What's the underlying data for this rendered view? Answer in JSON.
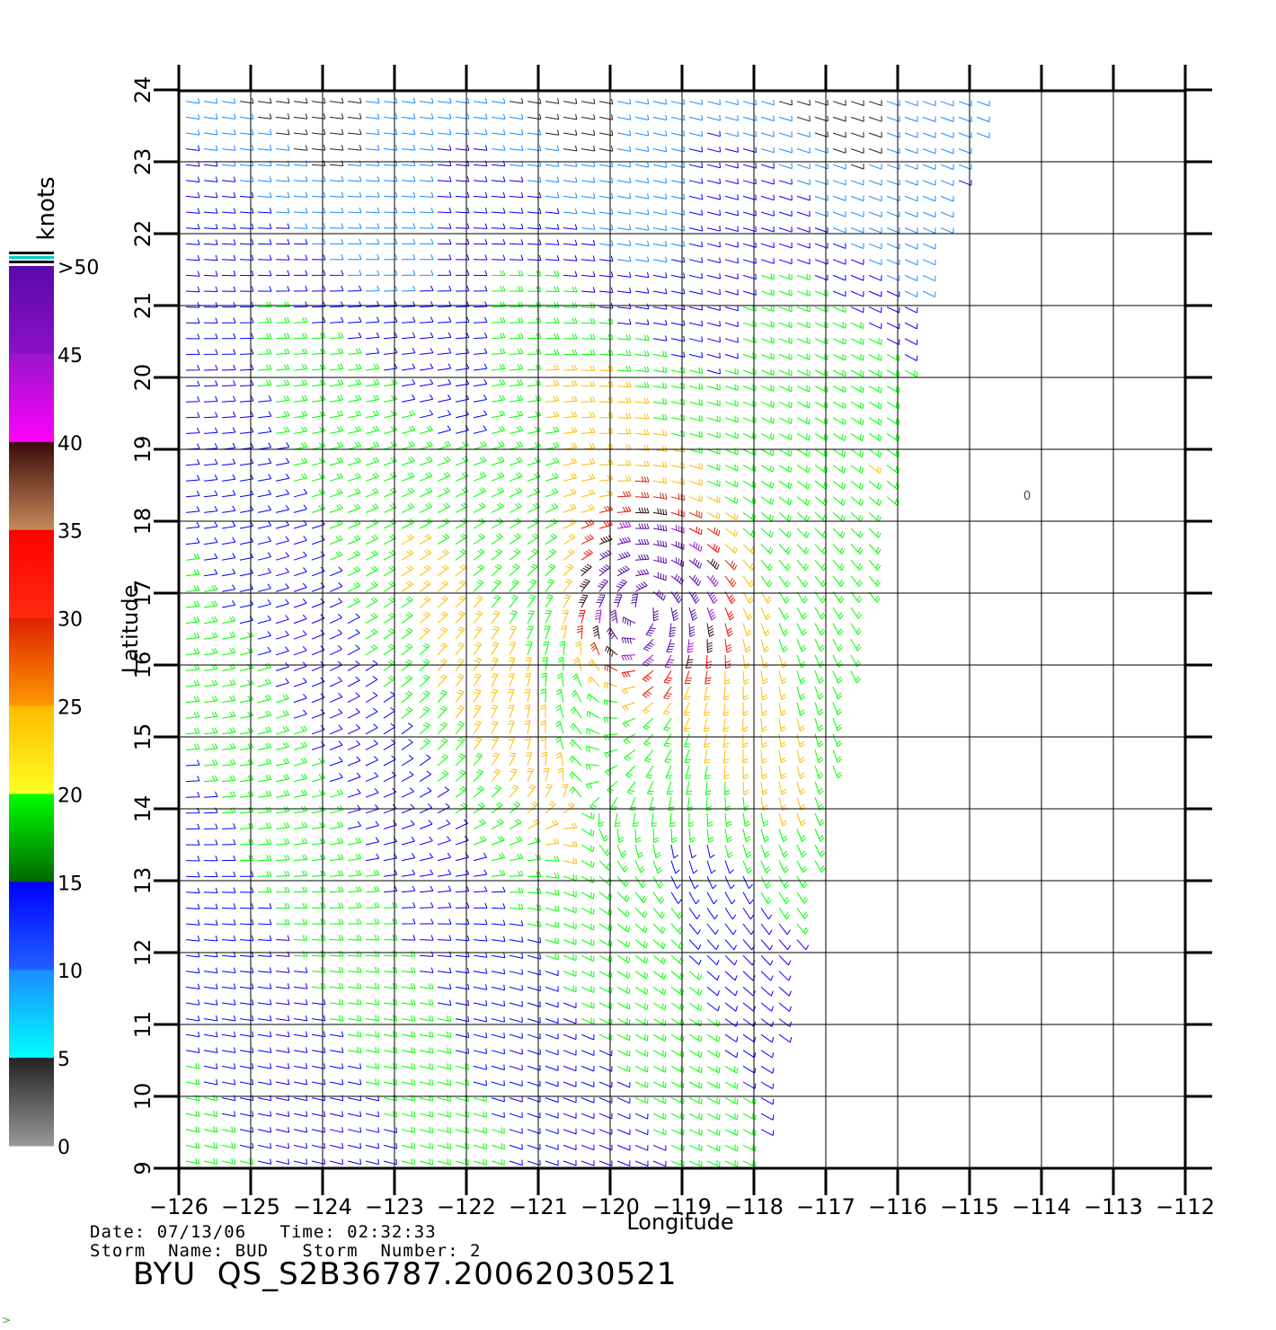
{
  "figure": {
    "product_title": "BYU  QS_S2B36787.20062030521",
    "date_label": "Date:",
    "date_value": "07/13/06",
    "time_label": "Time:",
    "time_value": "02:32:33",
    "storm_name_label": "Storm  Name:",
    "storm_name_value": "BUD",
    "storm_number_label": "Storm  Number:",
    "storm_number_value": "2",
    "footer_mark": ">"
  },
  "map": {
    "type": "wind-barb-map",
    "xlabel": "Longitude",
    "ylabel": "Latitude",
    "lon_ticks": [
      -126,
      -125,
      -124,
      -123,
      -122,
      -121,
      -120,
      -119,
      -118,
      -117,
      -116,
      -115,
      -114,
      -113,
      -112
    ],
    "lat_ticks": [
      9,
      10,
      11,
      12,
      13,
      14,
      15,
      16,
      17,
      18,
      19,
      20,
      21,
      22,
      23,
      24
    ],
    "lon_range": [
      -126,
      -112
    ],
    "lat_range": [
      9,
      24
    ],
    "grid": true,
    "swath_edge": [
      [
        -118.0,
        9.0
      ],
      [
        -117.6,
        11.0
      ],
      [
        -117.0,
        14.0
      ],
      [
        -116.6,
        16.0
      ],
      [
        -116.2,
        18.0
      ],
      [
        -115.9,
        20.0
      ],
      [
        -115.4,
        22.0
      ],
      [
        -114.6,
        24.0
      ]
    ],
    "storm_center": [
      -119.5,
      17.0
    ],
    "stray_marker": "0",
    "stray_marker_pos": [
      -114.2,
      18.3
    ]
  },
  "colorbar": {
    "title": "knots",
    "labels": [
      ">50",
      "45",
      "40",
      "35",
      "30",
      "25",
      "20",
      "15",
      "10",
      "5",
      "0"
    ],
    "segments": [
      {
        "from": 45,
        "to": 50,
        "top": "#5a0aa8",
        "bottom": "#8a10c8"
      },
      {
        "from": 40,
        "to": 45,
        "top": "#9a14c8",
        "bottom": "#ff00ff"
      },
      {
        "from": 35,
        "to": 40,
        "top": "#3a0a0a",
        "bottom": "#c88a5a"
      },
      {
        "from": 30,
        "to": 35,
        "top": "#ff0000",
        "bottom": "#ff2a10"
      },
      {
        "from": 25,
        "to": 30,
        "top": "#dd2200",
        "bottom": "#ff9900"
      },
      {
        "from": 20,
        "to": 25,
        "top": "#ffbb00",
        "bottom": "#ffff22"
      },
      {
        "from": 15,
        "to": 20,
        "top": "#00ff00",
        "bottom": "#006600"
      },
      {
        "from": 10,
        "to": 15,
        "top": "#0000ff",
        "bottom": "#2060ff"
      },
      {
        "from": 5,
        "to": 10,
        "top": "#1a8cff",
        "bottom": "#00ffff"
      },
      {
        "from": 0,
        "to": 5,
        "top": "#222222",
        "bottom": "#999999"
      }
    ],
    "marks": [
      "#111111",
      "#00cccc",
      "#111111"
    ]
  }
}
